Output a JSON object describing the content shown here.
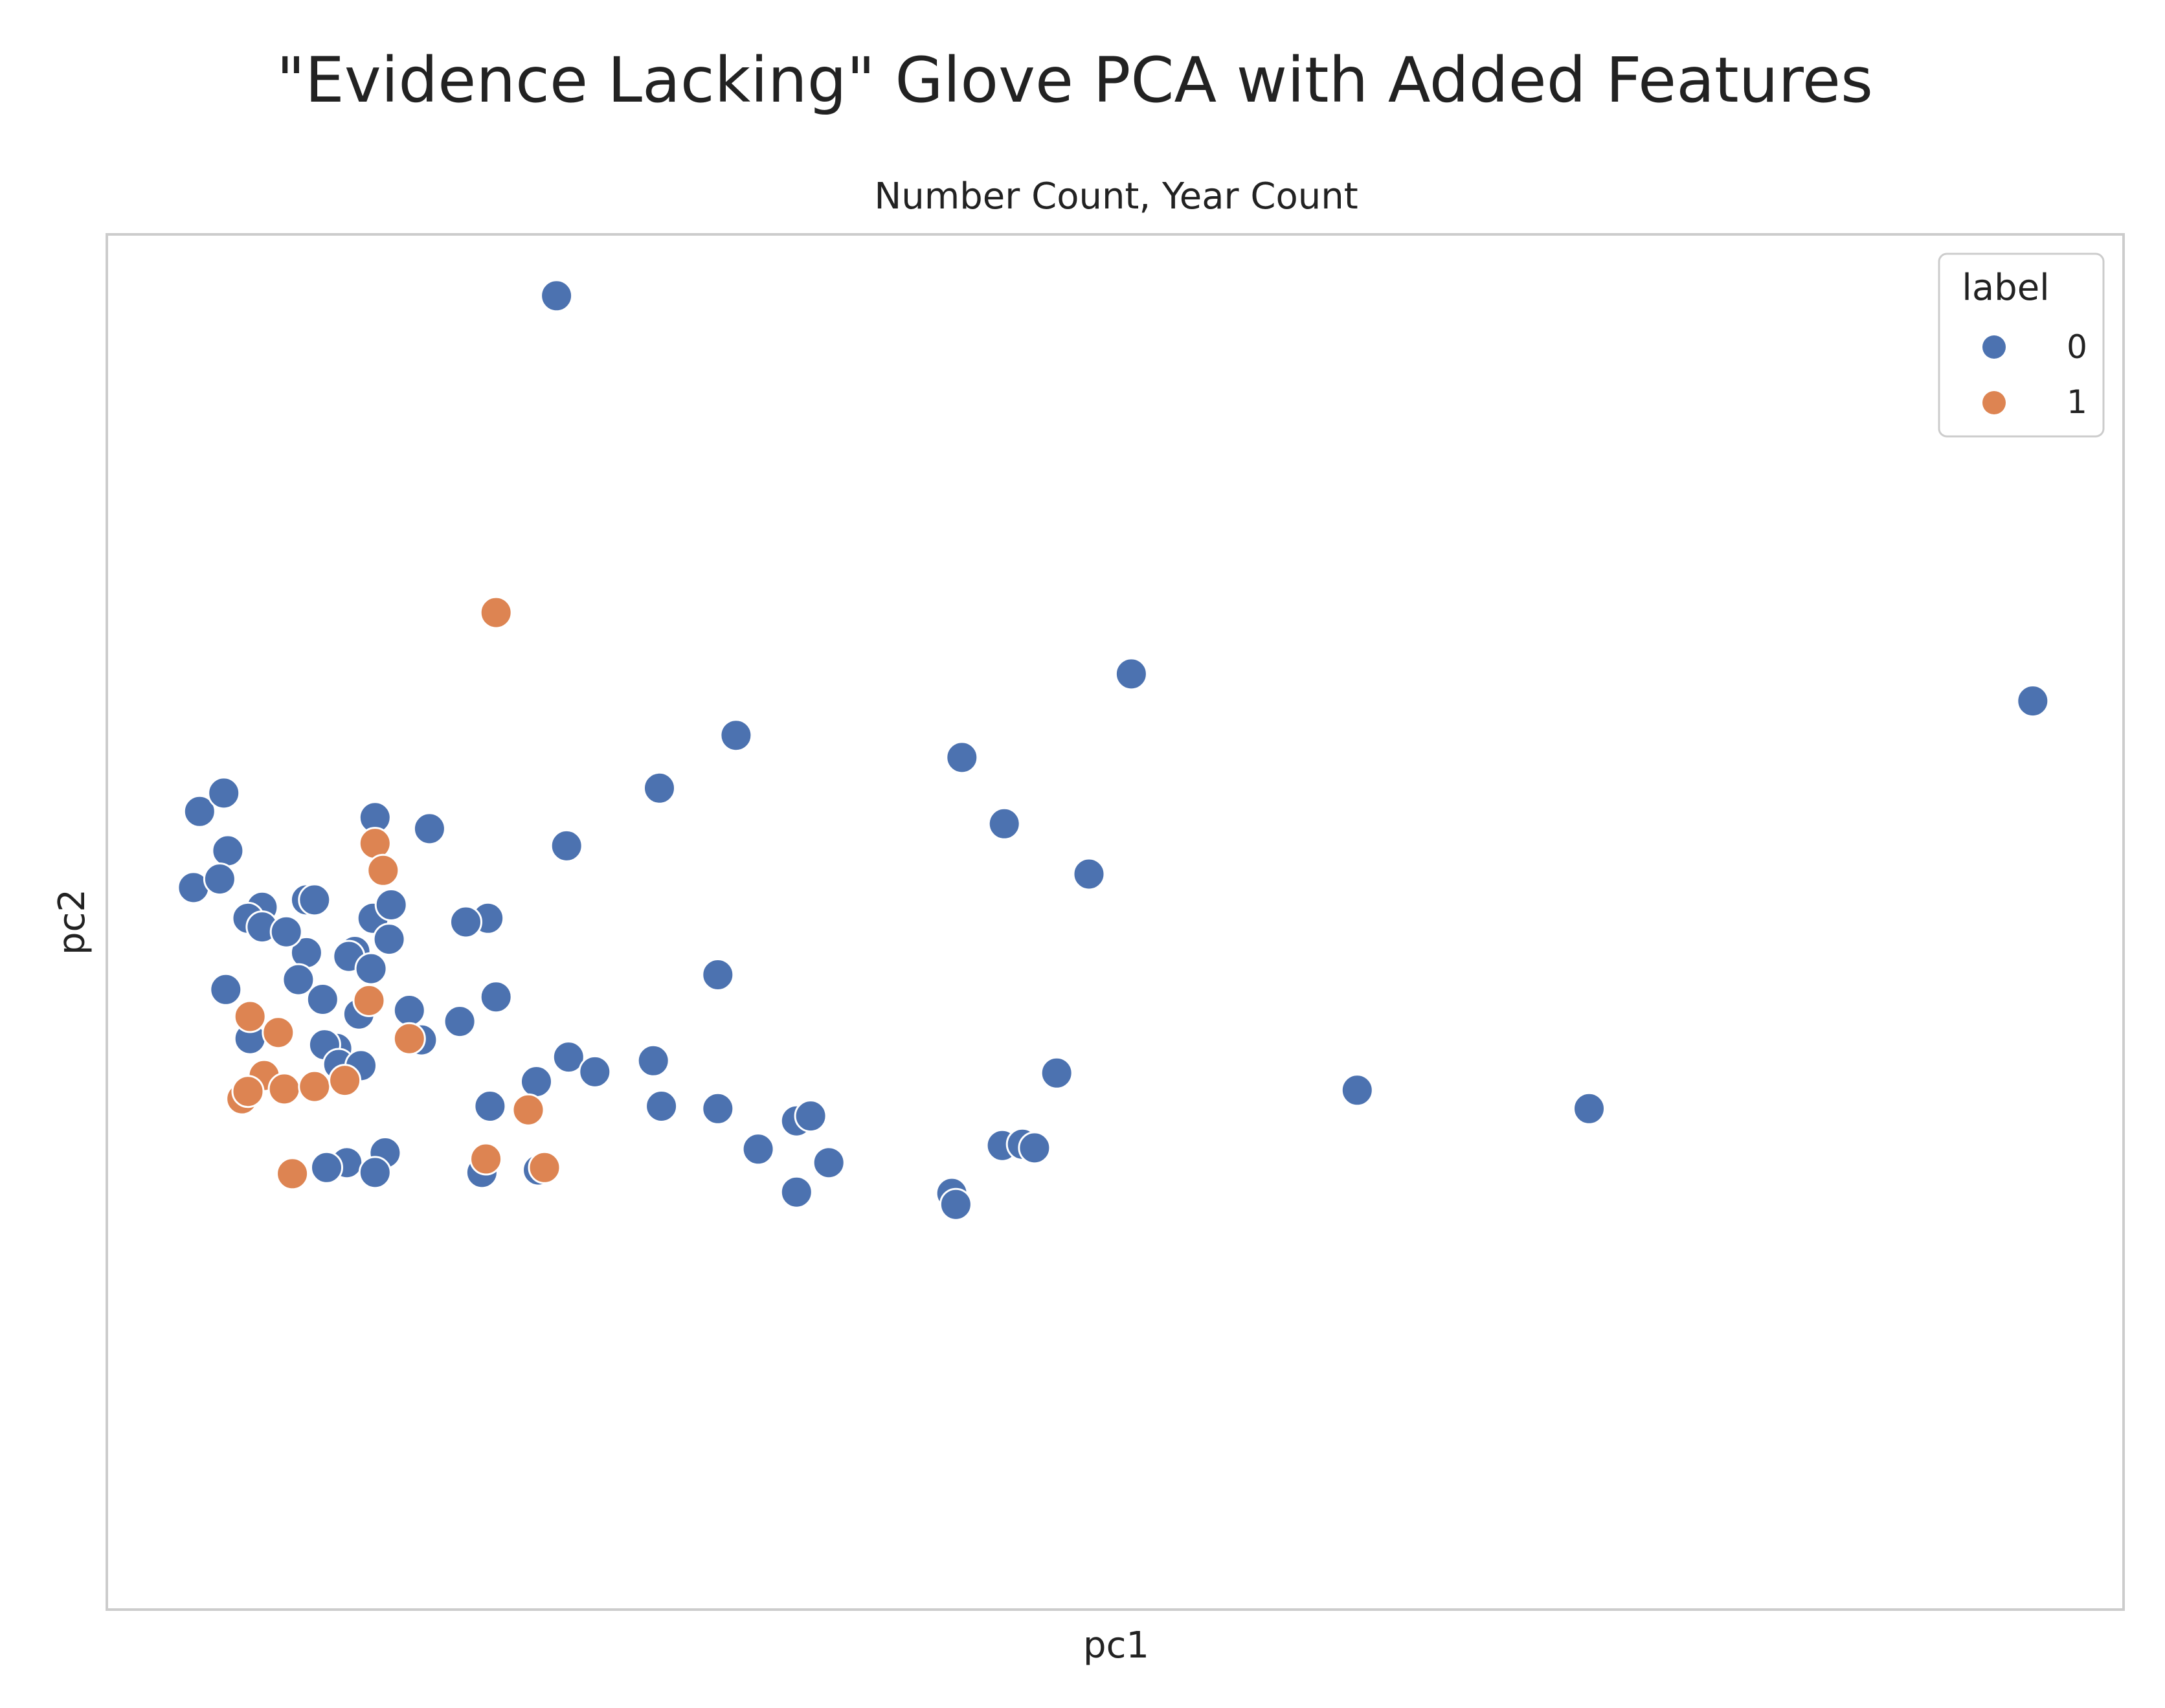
{
  "figure": {
    "suptitle": "\"Evidence Lacking\" Glove PCA with Added Features"
  },
  "chart_data": {
    "type": "scatter",
    "title": "Number Count, Year Count",
    "xlabel": "pc1",
    "ylabel": "pc2",
    "xlim": [
      -0.5,
      9.5
    ],
    "ylim": [
      -5.2,
      6.0
    ],
    "grid": false,
    "ticks_visible": false,
    "legend": {
      "title": "label",
      "position": "top-right",
      "entries": [
        "0",
        "1"
      ]
    },
    "colors": {
      "0": "#4c72b0",
      "1": "#dd8452"
    },
    "series": [
      {
        "name": "0",
        "x": [
          1.73,
          9.05,
          -0.04,
          0.08,
          0.1,
          -0.07,
          0.06,
          0.49,
          0.49,
          0.83,
          1.1,
          1.78,
          2.24,
          2.62,
          3.74,
          3.95,
          4.58,
          4.37,
          1.39,
          1.28,
          0.82,
          0.91,
          0.9,
          0.73,
          0.53,
          0.27,
          0.2,
          0.27,
          0.39,
          0.45,
          0.7,
          0.75,
          0.81,
          0.64,
          1.0,
          1.06,
          0.09,
          0.21,
          0.57,
          0.58,
          0.65,
          0.76,
          1.25,
          1.43,
          1.79,
          2.21,
          1.4,
          1.63,
          2.53,
          1.92,
          2.25,
          2.92,
          3.08,
          2.92,
          3.69,
          3.71,
          5.7,
          6.85,
          2.53,
          2.99,
          2.73,
          3.94,
          4.04,
          4.1,
          4.21,
          0.88,
          1.36,
          1.64,
          0.69,
          0.83,
          0.59
        ],
        "y": [
          5.5,
          2.2,
          1.3,
          1.45,
          0.98,
          0.68,
          0.75,
          0.58,
          0.15,
          1.25,
          1.16,
          1.02,
          1.49,
          1.92,
          1.74,
          1.2,
          2.42,
          0.79,
          0.43,
          0.4,
          0.43,
          0.54,
          0.26,
          0.16,
          0.58,
          0.52,
          0.43,
          0.36,
          0.32,
          -0.07,
          0.12,
          -0.35,
          0.02,
          -0.63,
          -0.32,
          -0.56,
          -0.15,
          -0.55,
          -0.23,
          -0.6,
          -0.76,
          -0.77,
          -0.41,
          -0.21,
          -0.7,
          -0.73,
          -1.1,
          -0.9,
          -0.03,
          -0.82,
          -1.1,
          -1.22,
          -1.56,
          -1.8,
          -1.81,
          -1.9,
          -0.97,
          -1.12,
          -1.12,
          -1.18,
          -1.45,
          -1.42,
          -1.41,
          -1.44,
          -0.83,
          -1.48,
          -1.64,
          -1.62,
          -1.56,
          -1.64,
          -1.6
        ],
        "point_count": 71
      },
      {
        "name": "1",
        "x": [
          1.43,
          0.83,
          0.87,
          0.8,
          1.0,
          0.21,
          0.35,
          0.28,
          0.38,
          0.53,
          0.68,
          0.17,
          0.2,
          1.59,
          1.38,
          1.67,
          0.42
        ],
        "y": [
          2.92,
          1.04,
          0.82,
          -0.24,
          -0.55,
          -0.37,
          -0.5,
          -0.85,
          -0.96,
          -0.94,
          -0.89,
          -1.04,
          -0.98,
          -1.13,
          -1.53,
          -1.6,
          -1.65
        ],
        "point_count": 17
      }
    ]
  }
}
